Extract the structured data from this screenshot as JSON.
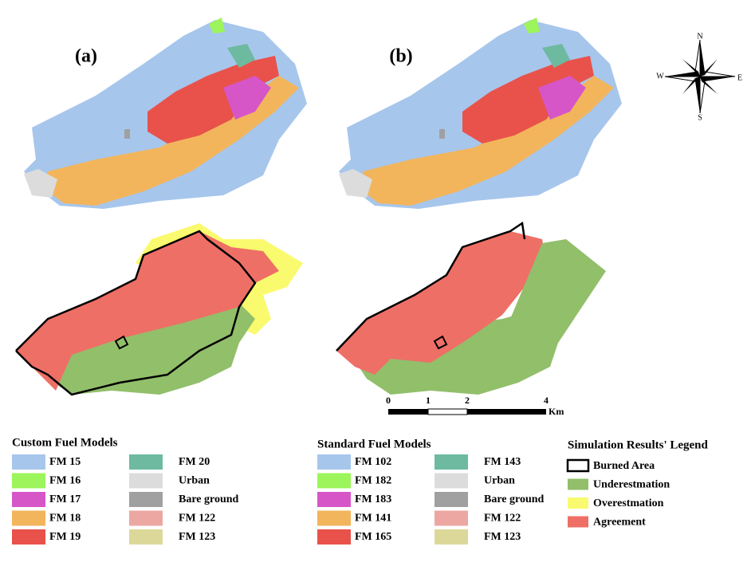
{
  "panels": [
    {
      "label": "(a)"
    },
    {
      "label": "(b)"
    }
  ],
  "compass": {
    "n": "N",
    "s": "S",
    "e": "E",
    "w": "W"
  },
  "scale_bar": {
    "ticks": [
      "0",
      "1",
      "2",
      "4"
    ],
    "unit": "Km"
  },
  "legends": [
    {
      "title": "Custom Fuel Models",
      "items": [
        {
          "label": "FM 15",
          "color": "#a7c6ec"
        },
        {
          "label": "FM 16",
          "color": "#9cf55a"
        },
        {
          "label": "FM 17",
          "color": "#d656c8"
        },
        {
          "label": "FM 18",
          "color": "#f2b55c"
        },
        {
          "label": "FM 19",
          "color": "#e9524b"
        },
        {
          "label": "FM 20",
          "color": "#6dbaa0"
        },
        {
          "label": "Urban",
          "color": "#dcdcdc"
        },
        {
          "label": "Bare ground",
          "color": "#a0a0a0"
        },
        {
          "label": "FM 122",
          "color": "#eda7a3"
        },
        {
          "label": "FM 123",
          "color": "#dcd89a"
        }
      ]
    },
    {
      "title": "Standard Fuel Models",
      "items": [
        {
          "label": "FM 102",
          "color": "#a7c6ec"
        },
        {
          "label": "FM 182",
          "color": "#9cf55a"
        },
        {
          "label": "FM 183",
          "color": "#d656c8"
        },
        {
          "label": "FM 141",
          "color": "#f2b55c"
        },
        {
          "label": "FM 165",
          "color": "#e9524b"
        },
        {
          "label": "FM 143",
          "color": "#6dbaa0"
        },
        {
          "label": "Urban",
          "color": "#dcdcdc"
        },
        {
          "label": "Bare ground",
          "color": "#a0a0a0"
        },
        {
          "label": "FM 122",
          "color": "#eda7a3"
        },
        {
          "label": "FM 123",
          "color": "#dcd89a"
        }
      ]
    },
    {
      "title": "Simulation Results' Legend",
      "items": [
        {
          "label": "Burned Area",
          "color": "#ffffff",
          "outline": true
        },
        {
          "label": "Underestmation",
          "color": "#92bf6a"
        },
        {
          "label": "Overestmation",
          "color": "#fafa6e"
        },
        {
          "label": "Agreement",
          "color": "#ee6f66"
        }
      ]
    }
  ]
}
